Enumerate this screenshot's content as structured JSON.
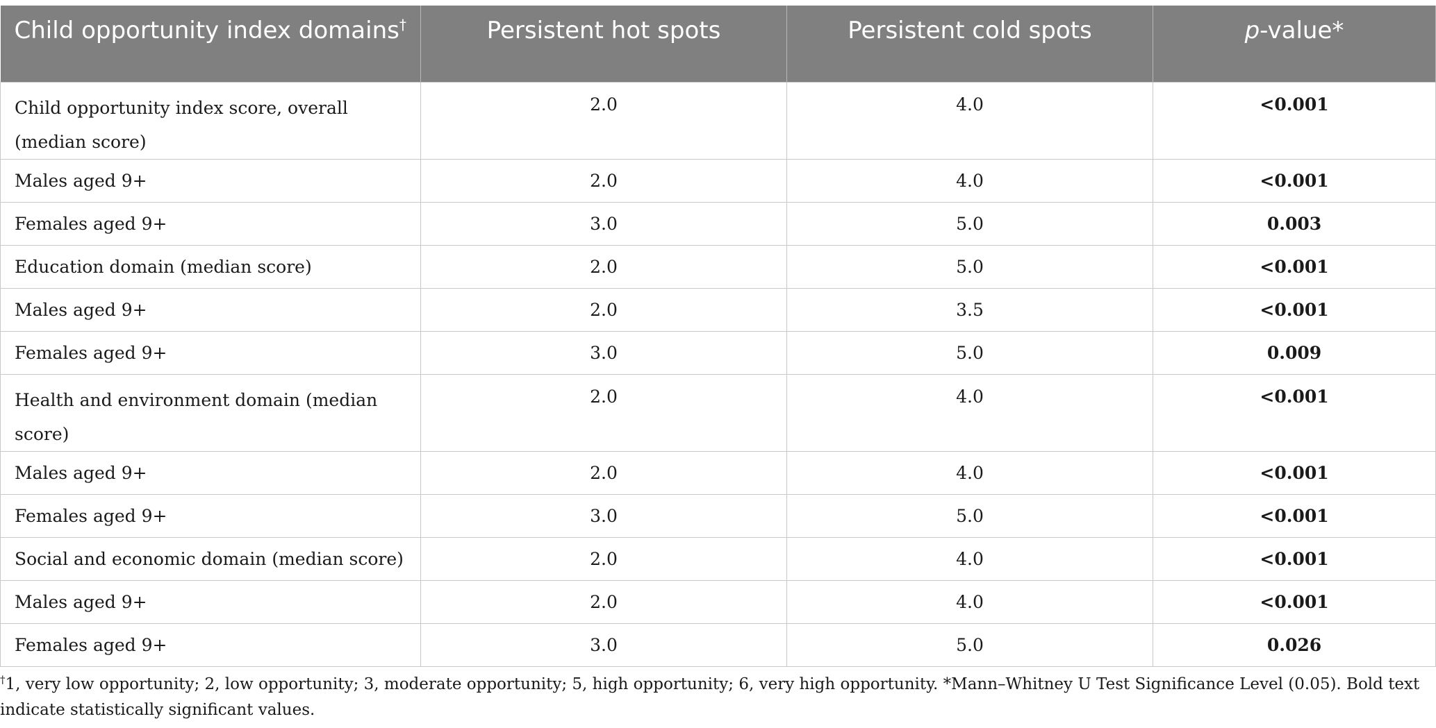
{
  "table": {
    "headers": {
      "col1": "Child opportunity index domains",
      "col1_mark": "†",
      "col2": "Persistent hot spots",
      "col3": "Persistent cold spots",
      "col4_italic": "p",
      "col4_rest": "-value*"
    },
    "rows": [
      {
        "label": "Child opportunity index score, overall (median score)",
        "hot": "2.0",
        "cold": "4.0",
        "p": "<0.001"
      },
      {
        "label": "Males aged 9+",
        "hot": "2.0",
        "cold": "4.0",
        "p": "<0.001"
      },
      {
        "label": "Females aged 9+",
        "hot": "3.0",
        "cold": "5.0",
        "p": "0.003"
      },
      {
        "label": "Education domain (median score)",
        "hot": "2.0",
        "cold": "5.0",
        "p": "<0.001"
      },
      {
        "label": "Males aged 9+",
        "hot": "2.0",
        "cold": "3.5",
        "p": "<0.001"
      },
      {
        "label": "Females aged 9+",
        "hot": "3.0",
        "cold": "5.0",
        "p": "0.009"
      },
      {
        "label": "Health and environment domain (median score)",
        "hot": "2.0",
        "cold": "4.0",
        "p": "<0.001"
      },
      {
        "label": "Males aged 9+",
        "hot": "2.0",
        "cold": "4.0",
        "p": "<0.001"
      },
      {
        "label": "Females aged 9+",
        "hot": "3.0",
        "cold": "5.0",
        "p": "<0.001"
      },
      {
        "label": "Social and economic domain (median score)",
        "hot": "2.0",
        "cold": "4.0",
        "p": "<0.001"
      },
      {
        "label": "Males aged 9+",
        "hot": "2.0",
        "cold": "4.0",
        "p": "<0.001"
      },
      {
        "label": "Females aged 9+",
        "hot": "3.0",
        "cold": "5.0",
        "p": "0.026"
      }
    ]
  },
  "footnote": {
    "mark": "†",
    "text": "1, very low opportunity; 2, low opportunity; 3, moderate opportunity; 5, high opportunity; 6, very high opportunity. *Mann–Whitney U Test Significance Level (0.05). Bold text indicate statistically significant values."
  },
  "colors": {
    "header_bg": "#808080",
    "header_text": "#ffffff",
    "border": "#c8c8c8"
  }
}
